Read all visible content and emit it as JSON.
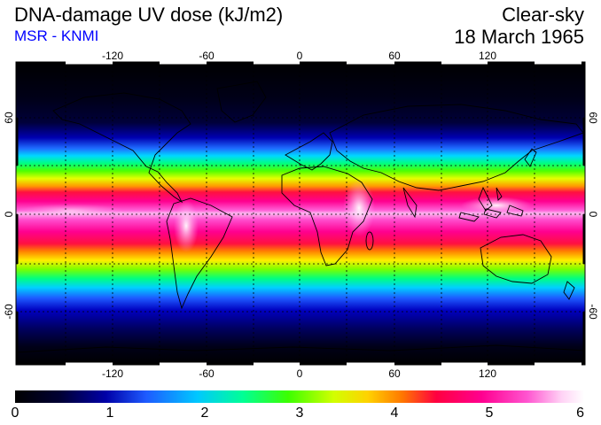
{
  "header": {
    "title": "DNA-damage UV dose (kJ/m2)",
    "subtitle": "MSR - KNMI",
    "sky_condition": "Clear-sky",
    "date": "18 March 1965"
  },
  "map": {
    "lon_ticks": [
      "-120",
      "-60",
      "0",
      "60",
      "120"
    ],
    "lat_ticks": [
      "60",
      "0",
      "-60"
    ],
    "grid": true,
    "projection": "plate carree",
    "gradient_colors": [
      "#000000",
      "#000035",
      "#0000a8",
      "#1e5aff",
      "#00c8ff",
      "#00ff96",
      "#3cff00",
      "#d2ff00",
      "#ffd200",
      "#ff7800",
      "#ff0040",
      "#ff0090",
      "#ff55d0",
      "#ffd2f5",
      "#ffffff"
    ]
  },
  "colorbar": {
    "labels": [
      "0",
      "1",
      "2",
      "3",
      "4",
      "5",
      "6"
    ],
    "min": 0,
    "max": 6
  }
}
